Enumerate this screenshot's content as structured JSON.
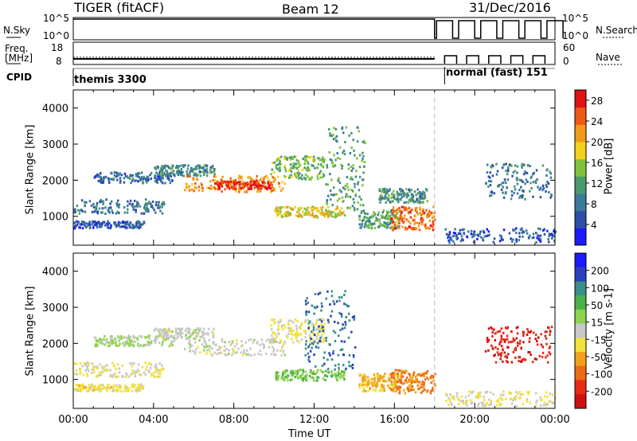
{
  "header": {
    "station": "TIGER (fitACF)",
    "beam": "Beam 12",
    "date": "31/Dec/2016"
  },
  "strip_labels": {
    "nsky": "N.Sky",
    "nsearch": "N.Search",
    "freq_line1": "Freq.",
    "freq_line2": "[MHz]",
    "nave": "Nave",
    "cpid": "CPID",
    "nsky_tick_top": "10^5",
    "nsky_tick_bottom": "10^0",
    "nsearch_tick_top": "10^5",
    "nsearch_tick_bottom": "10^0",
    "freq_tick_top": "18",
    "freq_tick_bottom": "8",
    "nave_tick_top": "60",
    "nave_tick_bottom": "0",
    "cpid_mode_1": "themis 3300",
    "cpid_mode_2": "normal (fast) 151"
  },
  "colors": {
    "power": [
      "#1a1aff",
      "#2e4fa8",
      "#3c7a9c",
      "#4a9a6e",
      "#7fc23c",
      "#f2d21a",
      "#f29a1a",
      "#ee5a14",
      "#e11212"
    ],
    "velocity": [
      "#1a1aff",
      "#2a3fbf",
      "#3a8f8a",
      "#49b04a",
      "#8fd44f",
      "#c8c8c8",
      "#f2e23a",
      "#f2a21a",
      "#ee6a16",
      "#e82a14",
      "#d01010"
    ]
  },
  "chart_data": [
    {
      "type": "heatmap",
      "quantity": "Power",
      "xlabel": "",
      "ylabel": "Slant Range [km]",
      "x_ticks": [
        "00:00",
        "04:00",
        "08:00",
        "12:00",
        "16:00",
        "20:00",
        "00:00"
      ],
      "y_ticks": [
        "1000",
        "2000",
        "3000",
        "4000"
      ],
      "xlim": [
        0,
        24
      ],
      "ylim": [
        200,
        4500
      ],
      "colorbar": {
        "label": "Power [dB]",
        "ticks": [
          "4",
          "8",
          "12",
          "16",
          "20",
          "24",
          "28"
        ],
        "range": [
          0,
          30
        ]
      },
      "regions": [
        {
          "t0": 0.0,
          "t1": 4.5,
          "r0": 1100,
          "r1": 1500,
          "level": 8
        },
        {
          "t0": 0.0,
          "t1": 3.5,
          "r0": 700,
          "r1": 900,
          "level": 6
        },
        {
          "t0": 1.0,
          "t1": 5.0,
          "r0": 1950,
          "r1": 2250,
          "level": 7
        },
        {
          "t0": 4.0,
          "t1": 7.0,
          "r0": 2150,
          "r1": 2450,
          "level": 10
        },
        {
          "t0": 5.5,
          "t1": 10.5,
          "r0": 1700,
          "r1": 2150,
          "level": 22
        },
        {
          "t0": 7.0,
          "t1": 9.8,
          "r0": 1780,
          "r1": 2000,
          "level": 27
        },
        {
          "t0": 9.8,
          "t1": 12.5,
          "r0": 2050,
          "r1": 2700,
          "level": 14
        },
        {
          "t0": 10.0,
          "t1": 13.5,
          "r0": 1000,
          "r1": 1300,
          "level": 18
        },
        {
          "t0": 12.5,
          "t1": 14.5,
          "r0": 1200,
          "r1": 3500,
          "level": 12
        },
        {
          "t0": 14.2,
          "t1": 16.2,
          "r0": 700,
          "r1": 1200,
          "level": 12
        },
        {
          "t0": 15.8,
          "t1": 18.0,
          "r0": 650,
          "r1": 1300,
          "level": 24
        },
        {
          "t0": 15.2,
          "t1": 17.6,
          "r0": 1400,
          "r1": 1800,
          "level": 10
        },
        {
          "t0": 18.5,
          "t1": 24.0,
          "r0": 300,
          "r1": 700,
          "level": 6
        },
        {
          "t0": 20.5,
          "t1": 23.8,
          "r0": 1500,
          "r1": 2500,
          "level": 8
        }
      ]
    },
    {
      "type": "heatmap",
      "quantity": "Velocity",
      "xlabel": "Time UT",
      "ylabel": "Slant Range [km]",
      "x_ticks": [
        "00:00",
        "04:00",
        "08:00",
        "12:00",
        "16:00",
        "20:00",
        "00:00"
      ],
      "y_ticks": [
        "1000",
        "2000",
        "3000",
        "4000"
      ],
      "xlim": [
        0,
        24
      ],
      "ylim": [
        200,
        4500
      ],
      "colorbar": {
        "label": "Velocity [m s-1]",
        "ticks": [
          "200",
          "100",
          "50",
          "15",
          "-15",
          "-50",
          "-100",
          "-200"
        ],
        "range": [
          -250,
          250
        ]
      },
      "regions": [
        {
          "t0": 0.0,
          "t1": 4.5,
          "r0": 1100,
          "r1": 1500,
          "value": -20
        },
        {
          "t0": 0.0,
          "t1": 3.5,
          "r0": 700,
          "r1": 900,
          "value": -40
        },
        {
          "t0": 1.0,
          "t1": 5.0,
          "r0": 1950,
          "r1": 2250,
          "value": 30
        },
        {
          "t0": 4.0,
          "t1": 7.0,
          "r0": 2150,
          "r1": 2450,
          "value": 0
        },
        {
          "t0": 5.5,
          "t1": 10.5,
          "r0": 1700,
          "r1": 2150,
          "value": 0
        },
        {
          "t0": 9.8,
          "t1": 12.5,
          "r0": 2050,
          "r1": 2700,
          "value": -30
        },
        {
          "t0": 10.0,
          "t1": 13.5,
          "r0": 1000,
          "r1": 1300,
          "value": 60
        },
        {
          "t0": 11.5,
          "t1": 14.0,
          "r0": 1300,
          "r1": 3500,
          "value": 150
        },
        {
          "t0": 14.2,
          "t1": 16.2,
          "r0": 700,
          "r1": 1200,
          "value": -80
        },
        {
          "t0": 15.8,
          "t1": 18.0,
          "r0": 650,
          "r1": 1300,
          "value": -120
        },
        {
          "t0": 18.5,
          "t1": 24.0,
          "r0": 300,
          "r1": 700,
          "value": -30
        },
        {
          "t0": 20.5,
          "t1": 23.8,
          "r0": 1500,
          "r1": 2500,
          "value": -200
        }
      ]
    }
  ]
}
